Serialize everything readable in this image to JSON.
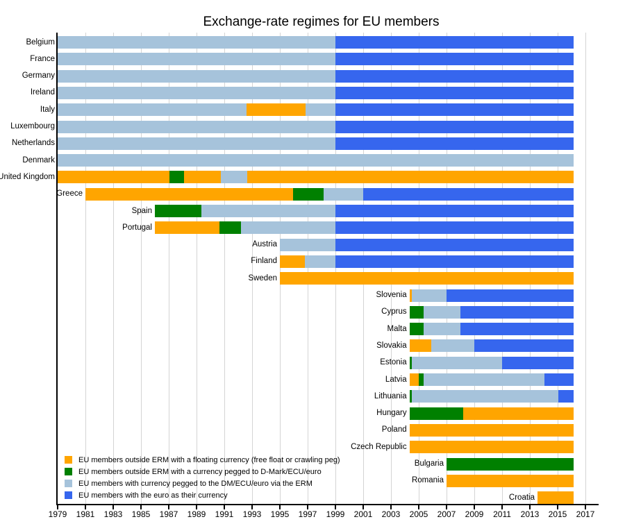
{
  "title": "Exchange-rate regimes for EU members",
  "colors": {
    "float": "#FFA500",
    "pegged": "#008000",
    "erm": "#A6C3DB",
    "euro": "#3666EE",
    "gridline": "#D4D4D4",
    "axis": "#000000",
    "text": "#000000"
  },
  "chart_data": {
    "type": "bar",
    "subtype": "timeline-gantt",
    "title": "Exchange-rate regimes for EU members",
    "xlabel": "",
    "ylabel": "",
    "grid": "vertical",
    "legend_position": "bottom-left-inside",
    "x_axis": {
      "min": 1979,
      "max": 2018,
      "tick_step": 2,
      "ticks": [
        1979,
        1981,
        1983,
        1985,
        1987,
        1989,
        1991,
        1993,
        1995,
        1997,
        1999,
        2001,
        2003,
        2005,
        2007,
        2009,
        2011,
        2013,
        2015,
        2017
      ]
    },
    "end_of_data": 2016.15,
    "regimes": [
      {
        "key": "float",
        "color": "#FFA500",
        "label": "EU members outside ERM with a floating currency (free float or crawling peg)"
      },
      {
        "key": "pegged",
        "color": "#008000",
        "label": "EU members outside ERM with a currency pegged to D-Mark/ECU/euro"
      },
      {
        "key": "erm",
        "color": "#A6C3DB",
        "label": "EU members with currency pegged to the DM/ECU/euro via the ERM"
      },
      {
        "key": "euro",
        "color": "#3666EE",
        "label": "EU members with the euro as their currency"
      }
    ],
    "countries": [
      {
        "name": "Belgium",
        "segments": [
          {
            "regime": "erm",
            "start": 1979,
            "end": 1999
          },
          {
            "regime": "euro",
            "start": 1999,
            "end": 2016.15
          }
        ]
      },
      {
        "name": "France",
        "segments": [
          {
            "regime": "erm",
            "start": 1979,
            "end": 1999
          },
          {
            "regime": "euro",
            "start": 1999,
            "end": 2016.15
          }
        ]
      },
      {
        "name": "Germany",
        "segments": [
          {
            "regime": "erm",
            "start": 1979,
            "end": 1999
          },
          {
            "regime": "euro",
            "start": 1999,
            "end": 2016.15
          }
        ]
      },
      {
        "name": "Ireland",
        "segments": [
          {
            "regime": "erm",
            "start": 1979,
            "end": 1999
          },
          {
            "regime": "euro",
            "start": 1999,
            "end": 2016.15
          }
        ]
      },
      {
        "name": "Italy",
        "segments": [
          {
            "regime": "erm",
            "start": 1979,
            "end": 1992.6
          },
          {
            "regime": "float",
            "start": 1992.6,
            "end": 1996.85
          },
          {
            "regime": "erm",
            "start": 1996.85,
            "end": 1999
          },
          {
            "regime": "euro",
            "start": 1999,
            "end": 2016.15
          }
        ]
      },
      {
        "name": "Luxembourg",
        "segments": [
          {
            "regime": "erm",
            "start": 1979,
            "end": 1999
          },
          {
            "regime": "euro",
            "start": 1999,
            "end": 2016.15
          }
        ]
      },
      {
        "name": "Netherlands",
        "segments": [
          {
            "regime": "erm",
            "start": 1979,
            "end": 1999
          },
          {
            "regime": "euro",
            "start": 1999,
            "end": 2016.15
          }
        ]
      },
      {
        "name": "Denmark",
        "segments": [
          {
            "regime": "erm",
            "start": 1979,
            "end": 2016.15
          }
        ]
      },
      {
        "name": "United Kingdom",
        "segments": [
          {
            "regime": "float",
            "start": 1979,
            "end": 1987.05
          },
          {
            "regime": "pegged",
            "start": 1987.05,
            "end": 1988.1
          },
          {
            "regime": "float",
            "start": 1988.1,
            "end": 1990.75
          },
          {
            "regime": "erm",
            "start": 1990.75,
            "end": 1992.65
          },
          {
            "regime": "float",
            "start": 1992.65,
            "end": 2016.15
          }
        ]
      },
      {
        "name": "Greece",
        "segments": [
          {
            "regime": "float",
            "start": 1981,
            "end": 1995.95
          },
          {
            "regime": "pegged",
            "start": 1995.95,
            "end": 1998.15
          },
          {
            "regime": "erm",
            "start": 1998.15,
            "end": 2001
          },
          {
            "regime": "euro",
            "start": 2001,
            "end": 2016.15
          }
        ]
      },
      {
        "name": "Spain",
        "segments": [
          {
            "regime": "pegged",
            "start": 1986,
            "end": 1989.35
          },
          {
            "regime": "erm",
            "start": 1989.35,
            "end": 1999
          },
          {
            "regime": "euro",
            "start": 1999,
            "end": 2016.15
          }
        ]
      },
      {
        "name": "Portugal",
        "segments": [
          {
            "regime": "float",
            "start": 1986,
            "end": 1990.65
          },
          {
            "regime": "pegged",
            "start": 1990.65,
            "end": 1992.2
          },
          {
            "regime": "erm",
            "start": 1992.2,
            "end": 1999
          },
          {
            "regime": "euro",
            "start": 1999,
            "end": 2016.15
          }
        ]
      },
      {
        "name": "Austria",
        "segments": [
          {
            "regime": "erm",
            "start": 1995,
            "end": 1999
          },
          {
            "regime": "euro",
            "start": 1999,
            "end": 2016.15
          }
        ]
      },
      {
        "name": "Finland",
        "segments": [
          {
            "regime": "float",
            "start": 1995,
            "end": 1996.8
          },
          {
            "regime": "erm",
            "start": 1996.8,
            "end": 1999
          },
          {
            "regime": "euro",
            "start": 1999,
            "end": 2016.15
          }
        ]
      },
      {
        "name": "Sweden",
        "segments": [
          {
            "regime": "float",
            "start": 1995,
            "end": 2016.15
          }
        ]
      },
      {
        "name": "Slovenia",
        "segments": [
          {
            "regime": "float",
            "start": 2004.33,
            "end": 2004.5
          },
          {
            "regime": "erm",
            "start": 2004.5,
            "end": 2007
          },
          {
            "regime": "euro",
            "start": 2007,
            "end": 2016.15
          }
        ]
      },
      {
        "name": "Cyprus",
        "segments": [
          {
            "regime": "pegged",
            "start": 2004.33,
            "end": 2005.35
          },
          {
            "regime": "erm",
            "start": 2005.35,
            "end": 2008
          },
          {
            "regime": "euro",
            "start": 2008,
            "end": 2016.15
          }
        ]
      },
      {
        "name": "Malta",
        "segments": [
          {
            "regime": "pegged",
            "start": 2004.33,
            "end": 2005.35
          },
          {
            "regime": "erm",
            "start": 2005.35,
            "end": 2008
          },
          {
            "regime": "euro",
            "start": 2008,
            "end": 2016.15
          }
        ]
      },
      {
        "name": "Slovakia",
        "segments": [
          {
            "regime": "float",
            "start": 2004.33,
            "end": 2005.9
          },
          {
            "regime": "erm",
            "start": 2005.9,
            "end": 2009
          },
          {
            "regime": "euro",
            "start": 2009,
            "end": 2016.15
          }
        ]
      },
      {
        "name": "Estonia",
        "segments": [
          {
            "regime": "pegged",
            "start": 2004.33,
            "end": 2004.5
          },
          {
            "regime": "erm",
            "start": 2004.5,
            "end": 2011
          },
          {
            "regime": "euro",
            "start": 2011,
            "end": 2016.15
          }
        ]
      },
      {
        "name": "Latvia",
        "segments": [
          {
            "regime": "float",
            "start": 2004.33,
            "end": 2005
          },
          {
            "regime": "pegged",
            "start": 2005,
            "end": 2005.35
          },
          {
            "regime": "erm",
            "start": 2005.35,
            "end": 2014.05
          },
          {
            "regime": "euro",
            "start": 2014.05,
            "end": 2016.15
          }
        ]
      },
      {
        "name": "Lithuania",
        "segments": [
          {
            "regime": "pegged",
            "start": 2004.33,
            "end": 2004.5
          },
          {
            "regime": "erm",
            "start": 2004.5,
            "end": 2015.05
          },
          {
            "regime": "euro",
            "start": 2015.05,
            "end": 2016.15
          }
        ]
      },
      {
        "name": "Hungary",
        "segments": [
          {
            "regime": "pegged",
            "start": 2004.33,
            "end": 2008.2
          },
          {
            "regime": "float",
            "start": 2008.2,
            "end": 2016.15
          }
        ]
      },
      {
        "name": "Poland",
        "segments": [
          {
            "regime": "float",
            "start": 2004.33,
            "end": 2016.15
          }
        ]
      },
      {
        "name": "Czech Republic",
        "segments": [
          {
            "regime": "float",
            "start": 2004.33,
            "end": 2016.15
          }
        ]
      },
      {
        "name": "Bulgaria",
        "segments": [
          {
            "regime": "pegged",
            "start": 2007,
            "end": 2016.15
          }
        ]
      },
      {
        "name": "Romania",
        "segments": [
          {
            "regime": "float",
            "start": 2007,
            "end": 2016.15
          }
        ]
      },
      {
        "name": "Croatia",
        "segments": [
          {
            "regime": "float",
            "start": 2013.55,
            "end": 2016.15
          }
        ]
      }
    ]
  }
}
